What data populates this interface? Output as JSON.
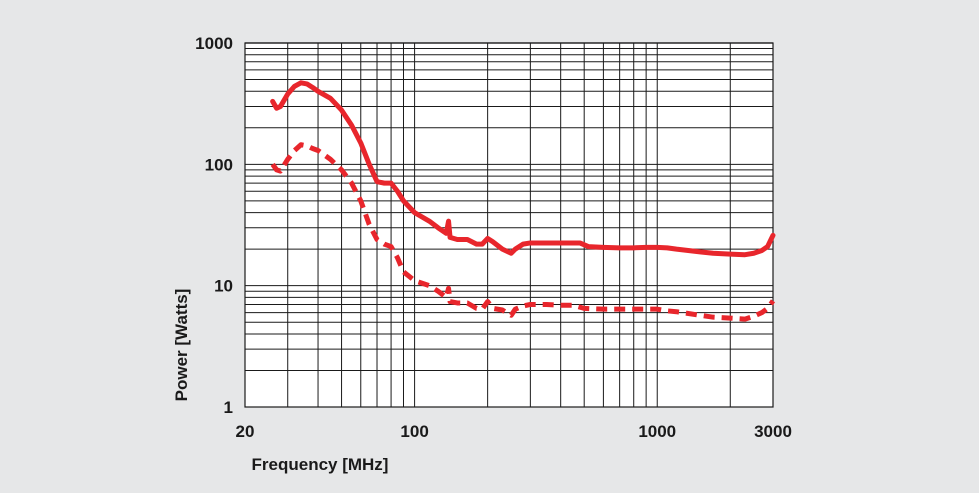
{
  "chart_data": {
    "type": "line",
    "title": "",
    "xlabel": "Frequency [MHz]",
    "ylabel": "Power [Watts]",
    "x_scale": "log",
    "y_scale": "log",
    "xlim": [
      20,
      3000
    ],
    "ylim": [
      1,
      1000
    ],
    "x_ticks": [
      {
        "value": 20,
        "label": "20"
      },
      {
        "value": 100,
        "label": "100"
      },
      {
        "value": 1000,
        "label": "1000"
      },
      {
        "value": 3000,
        "label": "3000"
      }
    ],
    "y_ticks": [
      {
        "value": 1,
        "label": "1"
      },
      {
        "value": 10,
        "label": "10"
      },
      {
        "value": 100,
        "label": "100"
      },
      {
        "value": 1000,
        "label": "1000"
      }
    ],
    "grid": true,
    "colors": {
      "series": "#e8262c",
      "grid": "#1a1a1a",
      "plot_bg": "#ffffff"
    },
    "series": [
      {
        "style": "solid",
        "points": [
          [
            26,
            330
          ],
          [
            27,
            290
          ],
          [
            28,
            300
          ],
          [
            30,
            380
          ],
          [
            32,
            440
          ],
          [
            34,
            470
          ],
          [
            36,
            460
          ],
          [
            38,
            430
          ],
          [
            40,
            400
          ],
          [
            45,
            350
          ],
          [
            50,
            280
          ],
          [
            55,
            210
          ],
          [
            60,
            150
          ],
          [
            65,
            100
          ],
          [
            70,
            72
          ],
          [
            75,
            70
          ],
          [
            80,
            70
          ],
          [
            85,
            60
          ],
          [
            90,
            50
          ],
          [
            100,
            40
          ],
          [
            115,
            34
          ],
          [
            125,
            30
          ],
          [
            135,
            27
          ],
          [
            138,
            34
          ],
          [
            140,
            25
          ],
          [
            150,
            24
          ],
          [
            165,
            24
          ],
          [
            180,
            22
          ],
          [
            190,
            22
          ],
          [
            200,
            24.5
          ],
          [
            210,
            23
          ],
          [
            230,
            20
          ],
          [
            250,
            18.5
          ],
          [
            260,
            20
          ],
          [
            280,
            22
          ],
          [
            300,
            22.5
          ],
          [
            350,
            22.5
          ],
          [
            400,
            22.5
          ],
          [
            450,
            22.5
          ],
          [
            480,
            22.5
          ],
          [
            520,
            21
          ],
          [
            600,
            20.7
          ],
          [
            700,
            20.5
          ],
          [
            800,
            20.5
          ],
          [
            900,
            20.7
          ],
          [
            1000,
            20.7
          ],
          [
            1100,
            20.5
          ],
          [
            1200,
            20
          ],
          [
            1500,
            19
          ],
          [
            1700,
            18.5
          ],
          [
            2000,
            18.2
          ],
          [
            2300,
            18
          ],
          [
            2500,
            18.5
          ],
          [
            2700,
            19.5
          ],
          [
            2850,
            21
          ],
          [
            3000,
            26
          ]
        ]
      },
      {
        "style": "dashed",
        "points": [
          [
            26,
            100
          ],
          [
            27,
            90
          ],
          [
            28,
            88
          ],
          [
            30,
            110
          ],
          [
            32,
            130
          ],
          [
            34,
            145
          ],
          [
            36,
            142
          ],
          [
            38,
            135
          ],
          [
            40,
            130
          ],
          [
            45,
            110
          ],
          [
            50,
            90
          ],
          [
            55,
            70
          ],
          [
            60,
            50
          ],
          [
            65,
            32
          ],
          [
            70,
            24
          ],
          [
            75,
            22
          ],
          [
            80,
            21
          ],
          [
            85,
            17
          ],
          [
            90,
            13
          ],
          [
            100,
            11
          ],
          [
            115,
            10
          ],
          [
            125,
            9
          ],
          [
            135,
            8
          ],
          [
            138,
            9.5
          ],
          [
            140,
            7.4
          ],
          [
            150,
            7.2
          ],
          [
            165,
            7.2
          ],
          [
            180,
            6.5
          ],
          [
            190,
            6.4
          ],
          [
            200,
            7.4
          ],
          [
            210,
            6.5
          ],
          [
            230,
            6.3
          ],
          [
            250,
            5.7
          ],
          [
            260,
            6.4
          ],
          [
            280,
            6.8
          ],
          [
            300,
            7
          ],
          [
            350,
            7
          ],
          [
            400,
            6.9
          ],
          [
            450,
            6.9
          ],
          [
            500,
            6.5
          ],
          [
            600,
            6.4
          ],
          [
            700,
            6.4
          ],
          [
            800,
            6.4
          ],
          [
            900,
            6.4
          ],
          [
            1000,
            6.4
          ],
          [
            1100,
            6.2
          ],
          [
            1200,
            6.1
          ],
          [
            1500,
            5.7
          ],
          [
            1700,
            5.5
          ],
          [
            2000,
            5.4
          ],
          [
            2300,
            5.3
          ],
          [
            2500,
            5.6
          ],
          [
            2700,
            6
          ],
          [
            2850,
            6.5
          ],
          [
            3000,
            7.5
          ]
        ]
      }
    ]
  }
}
